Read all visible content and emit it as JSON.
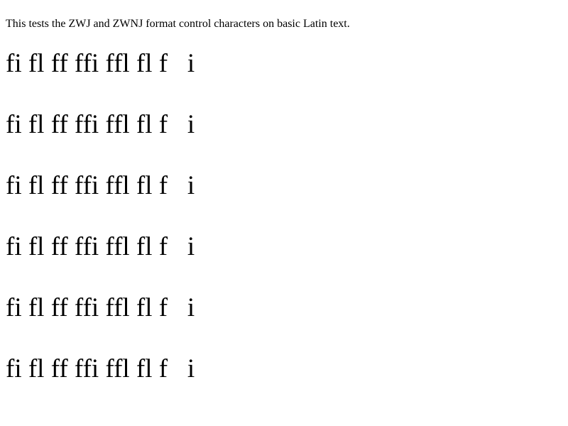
{
  "intro": "This tests the ZWJ and ZWNJ format control characters on basic Latin text.",
  "lines": [
    "fi fl ff ffi ffl fl f   i",
    "fi fl ff ffi ffl fl f   i",
    "fi fl ff ffi ffl fl f   i",
    "fi fl ff ffi ffl fl f   i",
    "fi fl ff ffi ffl fl f   i",
    "fi fl ff ffi ffl fl f   i"
  ]
}
